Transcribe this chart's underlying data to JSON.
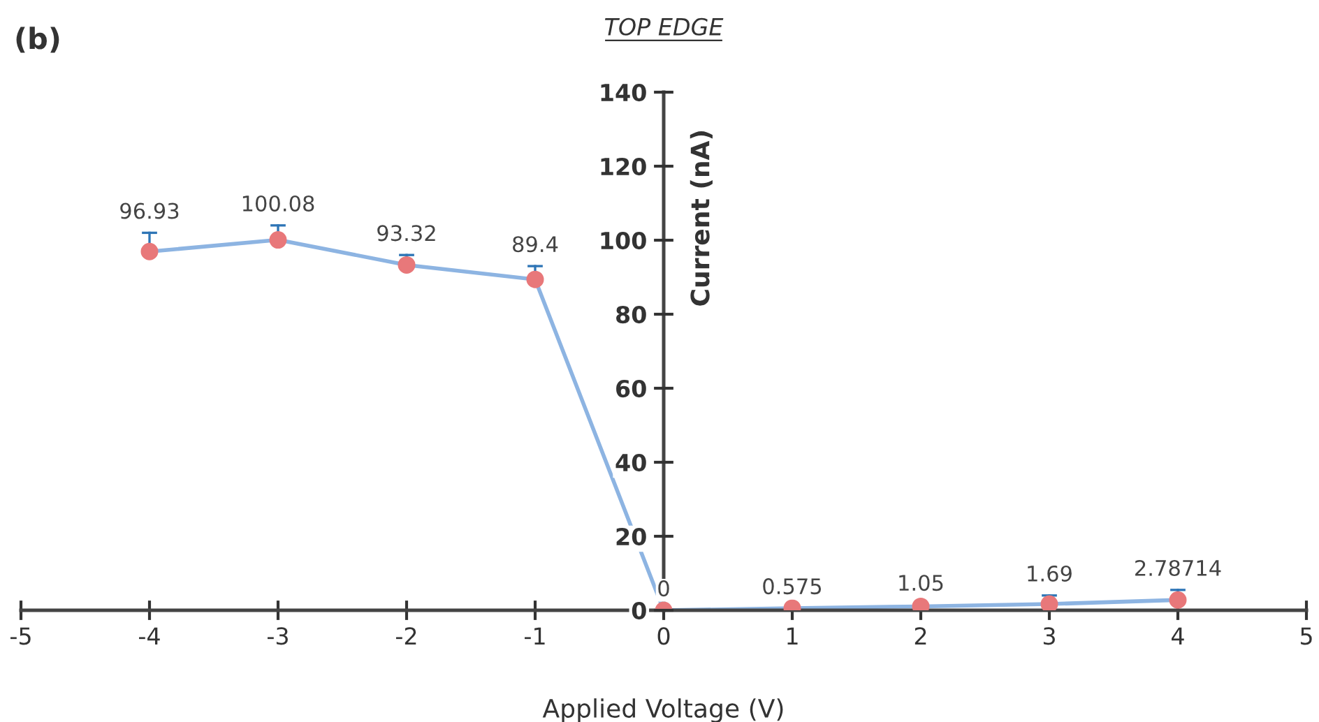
{
  "chart_data": {
    "type": "line",
    "title": "TOP EDGE",
    "xlabel": "Applied Voltage (V)",
    "ylabel": "Current (nA)",
    "annotations": [
      "(b)"
    ],
    "x": [
      -4,
      -3,
      -2,
      -1,
      0,
      1,
      2,
      3,
      4
    ],
    "series": [
      {
        "color": "#8db4e2",
        "colors": [
          "#e8787a",
          "#e8787a",
          "#e8787a",
          "#e8787a",
          "#e8787a",
          "#e8787a",
          "#e8787a",
          "#e8787a",
          "#e8787a"
        ],
        "values": [
          96.93,
          100.08,
          93.32,
          89.4,
          0,
          0.575,
          1.05,
          1.69,
          2.78714
        ],
        "errors": [
          [
            96.93,
            102
          ],
          [
            100.08,
            104
          ],
          [
            93.32,
            96
          ],
          [
            89.4,
            93
          ],
          null,
          null,
          [
            1.05,
            1.5
          ],
          [
            1.69,
            4
          ],
          [
            2.78714,
            5.5
          ]
        ]
      }
    ],
    "xlim": [
      -5,
      5
    ],
    "xticks": [
      -5,
      -4,
      -3,
      -2,
      -1,
      0,
      1,
      2,
      3,
      4,
      5
    ],
    "ylim": [
      0,
      140
    ],
    "yticks": [
      0,
      20,
      40,
      60,
      80,
      100,
      120,
      140
    ],
    "marker": "circle",
    "line_style": "solid",
    "data_labels": true,
    "grid": false,
    "legend": false
  }
}
